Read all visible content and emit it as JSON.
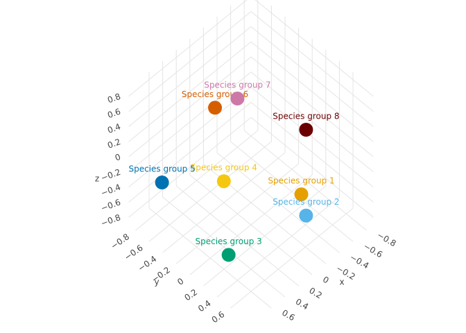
{
  "chart_data": {
    "type": "scatter3d",
    "xlabel": "x",
    "ylabel": "y",
    "zlabel": "z",
    "xlim": [
      -0.9,
      0.9
    ],
    "ylim": [
      -0.9,
      0.9
    ],
    "zlim": [
      -0.9,
      0.9
    ],
    "xticks": [
      {
        "value": -0.8,
        "label": "−0.8"
      },
      {
        "value": -0.6,
        "label": "−0.6"
      },
      {
        "value": -0.4,
        "label": "−0.4"
      },
      {
        "value": -0.2,
        "label": "−0.2"
      },
      0,
      0.2,
      0.4,
      0.6
    ],
    "yticks": [
      {
        "value": -0.8,
        "label": "−0.8"
      },
      {
        "value": -0.6,
        "label": "−0.6"
      },
      {
        "value": -0.4,
        "label": "−0.4"
      },
      {
        "value": -0.2,
        "label": "−0.2"
      },
      0,
      0.2,
      0.4,
      0.6
    ],
    "zticks": [
      {
        "value": -0.8,
        "label": "−0.8"
      },
      {
        "value": -0.6,
        "label": "−0.6"
      },
      {
        "value": -0.4,
        "label": "−0.4"
      },
      {
        "value": -0.2,
        "label": "−0.2"
      },
      0,
      0.2,
      0.4,
      0.6,
      0.8
    ],
    "grid": true,
    "series": [
      {
        "name": "Species group 1",
        "color": "#E69F00",
        "x": [
          -0.1
        ],
        "y": [
          0.64
        ],
        "z": [
          -0.1
        ]
      },
      {
        "name": "Species group 2",
        "color": "#56B4E9",
        "x": [
          -0.08
        ],
        "y": [
          0.73
        ],
        "z": [
          -0.3
        ]
      },
      {
        "name": "Species group 3",
        "color": "#009E73",
        "x": [
          0.64
        ],
        "y": [
          0.31
        ],
        "z": [
          -0.6
        ]
      },
      {
        "name": "Species group 4",
        "color": "#F5C710",
        "x": [
          0.42
        ],
        "y": [
          0.02
        ],
        "z": [
          0
        ]
      },
      {
        "name": "Species group 5",
        "color": "#0072B2",
        "x": [
          0.75
        ],
        "y": [
          -0.56
        ],
        "z": [
          -0.2
        ]
      },
      {
        "name": "Species group 6",
        "color": "#D55E00",
        "x": [
          0.3
        ],
        "y": [
          -0.23
        ],
        "z": [
          0.7
        ]
      },
      {
        "name": "Species group 7",
        "color": "#CC79A7",
        "x": [
          0.12
        ],
        "y": [
          -0.08
        ],
        "z": [
          0.8
        ]
      },
      {
        "name": "Species group 8",
        "color": "#6B0000",
        "x": [
          -0.24
        ],
        "y": [
          0.57
        ],
        "z": [
          0.6
        ]
      }
    ]
  }
}
